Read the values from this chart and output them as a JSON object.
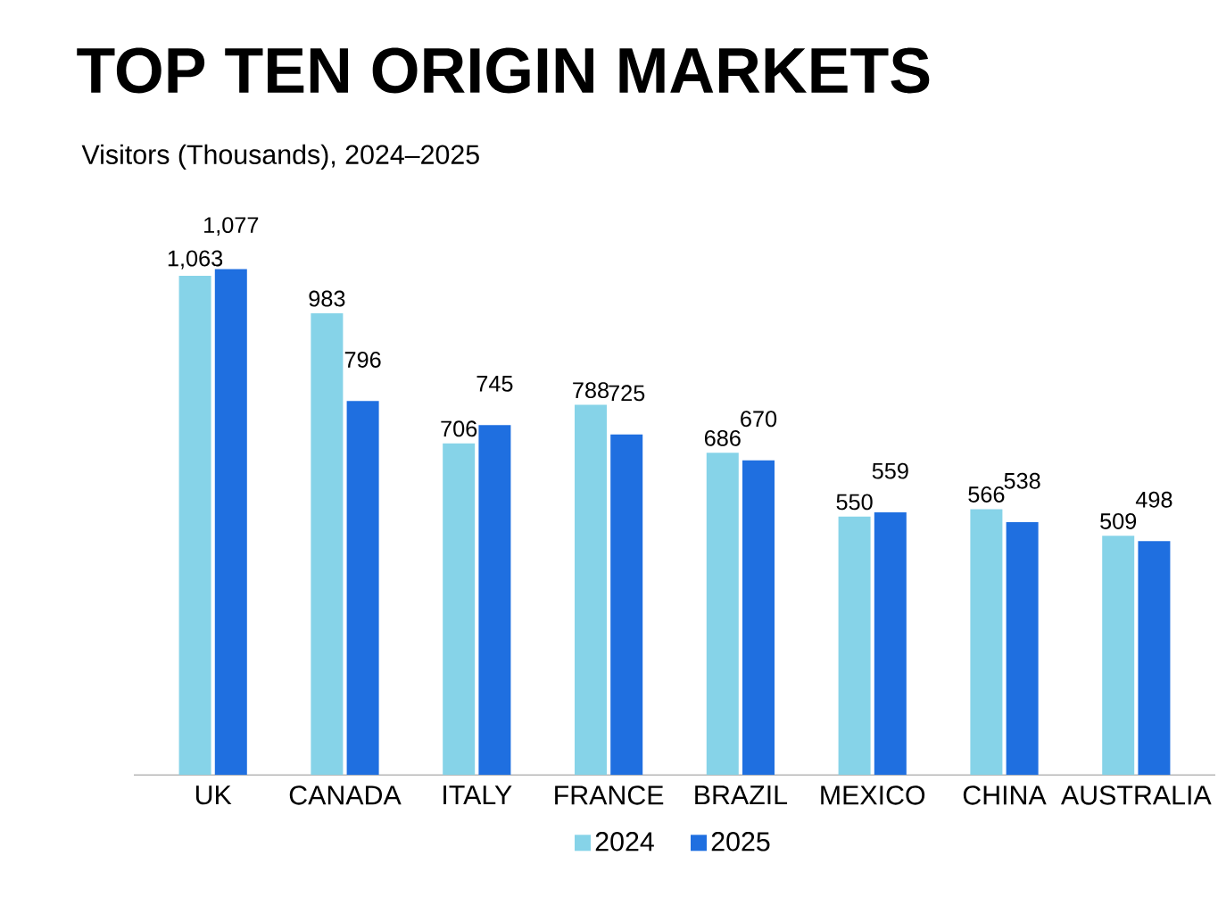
{
  "chart_data": {
    "type": "bar",
    "title": "TOP TEN ORIGIN MARKETS",
    "subtitle": "Visitors (Thousands), 2024–2025",
    "categories": [
      "UK",
      "CANADA",
      "ITALY",
      "FRANCE",
      "BRAZIL",
      "MEXICO",
      "CHINA",
      "AUSTRALIA"
    ],
    "series": [
      {
        "name": "2024",
        "color": "#86d3e8",
        "values": [
          1063,
          983,
          706,
          788,
          686,
          550,
          566,
          509
        ],
        "value_labels": [
          "1,063",
          "983",
          "706",
          "788",
          "686",
          "550",
          "566",
          "509"
        ]
      },
      {
        "name": "2025",
        "color": "#1f6fe0",
        "values": [
          1077,
          796,
          745,
          725,
          670,
          559,
          538,
          498
        ],
        "value_labels": [
          "1,077",
          "796",
          "745",
          "725",
          "670",
          "559",
          "538",
          "498"
        ]
      }
    ],
    "legend": "bottom"
  }
}
